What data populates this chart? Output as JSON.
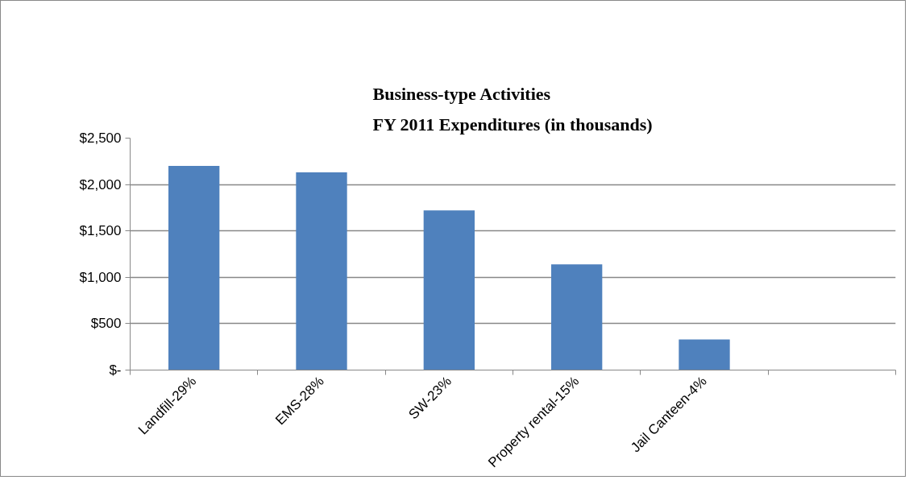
{
  "chart_data": {
    "type": "bar",
    "title": "Business-type Activities\nFY 2011 Expenditures (in thousands)",
    "categories": [
      "Landfill-29%",
      "EMS-28%",
      "SW-23%",
      "Property rental-15%",
      "Jail Canteen-4%",
      null
    ],
    "values": [
      2200,
      2130,
      1720,
      1140,
      330,
      null
    ],
    "color": "#4f81bd",
    "ylim": [
      0,
      2500
    ],
    "yticks": [
      {
        "value": 0,
        "label": "$-"
      },
      {
        "value": 500,
        "label": "$500"
      },
      {
        "value": 1000,
        "label": "$1,000"
      },
      {
        "value": 1500,
        "label": "$1,500"
      },
      {
        "value": 2000,
        "label": "$2,000"
      },
      {
        "value": 2500,
        "label": "$2,500"
      }
    ],
    "grid": "y"
  }
}
